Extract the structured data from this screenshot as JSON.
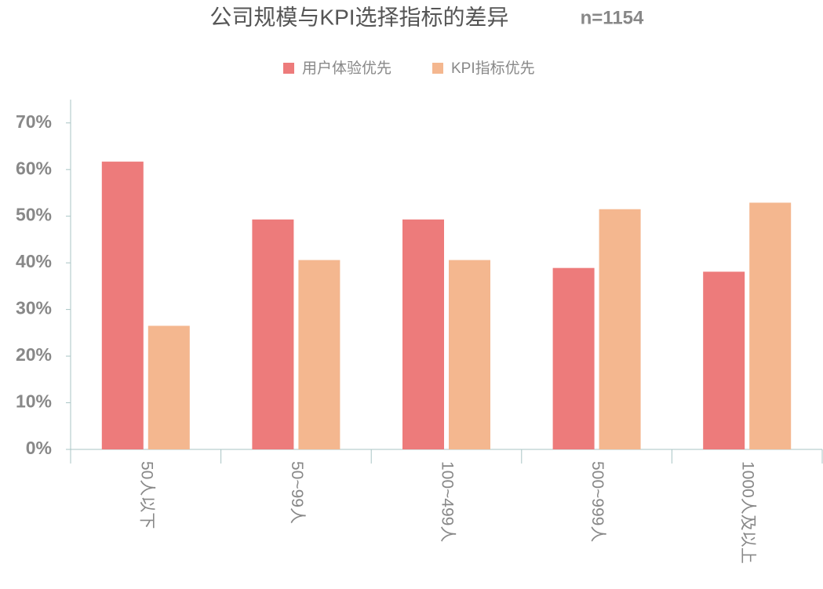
{
  "chart_data": {
    "type": "bar",
    "title": "公司规模与KPI选择指标的差异",
    "subtitle": "n=1154",
    "categories": [
      "50人以下",
      "50~99人",
      "100~499人",
      "500~999人",
      "1000人及以上"
    ],
    "series": [
      {
        "name": "用户体验优先",
        "color": "#ed7b7b",
        "values": [
          61.7,
          49.3,
          49.3,
          38.9,
          38.1
        ]
      },
      {
        "name": "KPI指标优先",
        "color": "#f4b78f",
        "values": [
          26.5,
          40.6,
          40.6,
          51.5,
          52.9
        ]
      }
    ],
    "ylim": [
      0,
      75
    ],
    "yticks": [
      {
        "value": 0,
        "label": "0%"
      },
      {
        "value": 10,
        "label": "10%"
      },
      {
        "value": 20,
        "label": "20%"
      },
      {
        "value": 30,
        "label": "30%"
      },
      {
        "value": 40,
        "label": "40%"
      },
      {
        "value": 50,
        "label": "50%"
      },
      {
        "value": 60,
        "label": "60%"
      },
      {
        "value": 70,
        "label": "70%"
      }
    ],
    "legend": "top"
  }
}
